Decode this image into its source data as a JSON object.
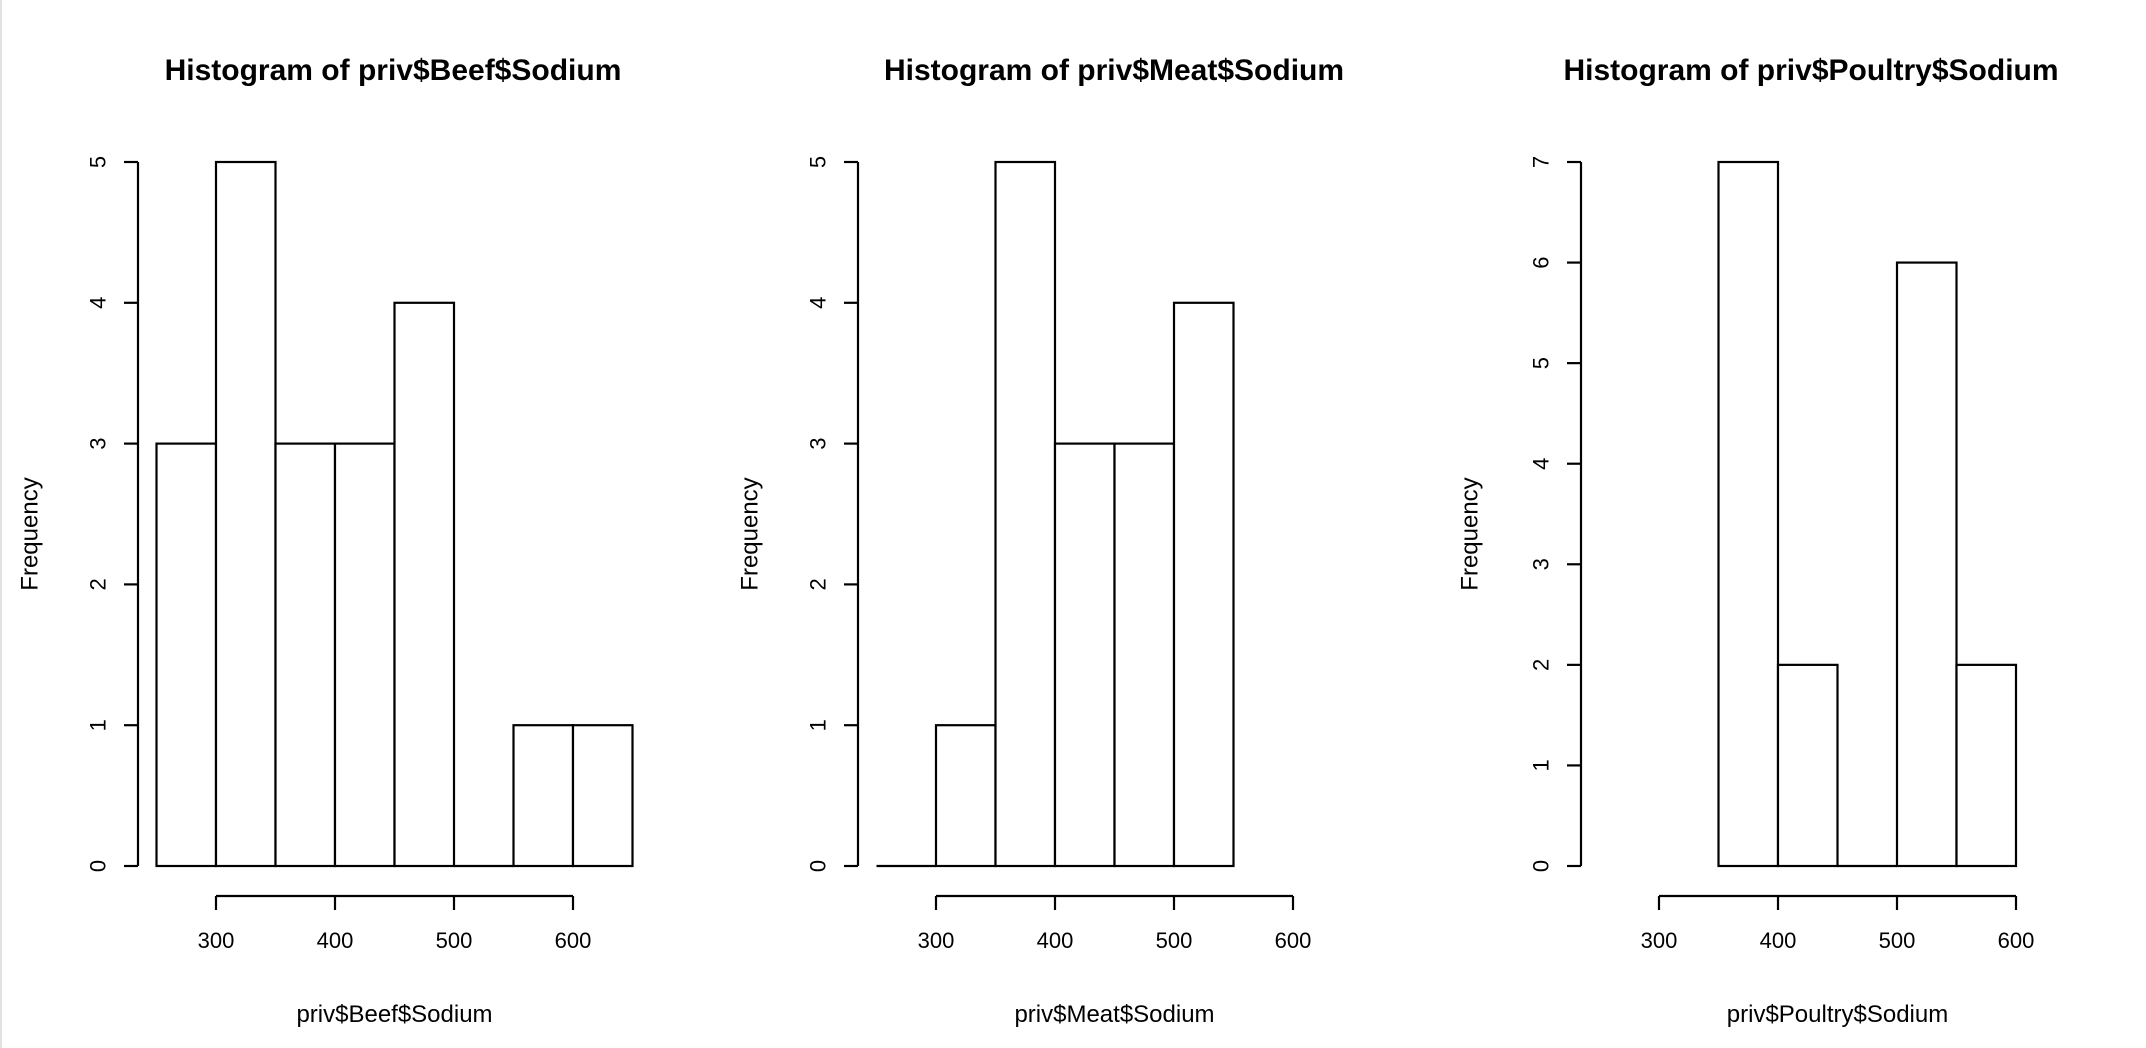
{
  "chart_data": [
    {
      "type": "bar",
      "subtype": "histogram",
      "title": "Histogram of priv$Beef$Sodium",
      "xlabel": "priv$Beef$Sodium",
      "ylabel": "Frequency",
      "bins": [
        {
          "from": 250,
          "to": 300,
          "count": 3
        },
        {
          "from": 300,
          "to": 350,
          "count": 5
        },
        {
          "from": 350,
          "to": 400,
          "count": 3
        },
        {
          "from": 400,
          "to": 450,
          "count": 3
        },
        {
          "from": 450,
          "to": 500,
          "count": 4
        },
        {
          "from": 500,
          "to": 550,
          "count": 0
        },
        {
          "from": 550,
          "to": 600,
          "count": 1
        },
        {
          "from": 600,
          "to": 650,
          "count": 1
        }
      ],
      "xticks": [
        "300",
        "400",
        "500",
        "600"
      ],
      "yticks": [
        "0",
        "1",
        "2",
        "3",
        "4",
        "5"
      ],
      "xlim": [
        250,
        650
      ],
      "ylim": [
        0,
        5
      ],
      "xaxis_range": [
        300,
        600
      ]
    },
    {
      "type": "bar",
      "subtype": "histogram",
      "title": "Histogram of priv$Meat$Sodium",
      "xlabel": "priv$Meat$Sodium",
      "ylabel": "Frequency",
      "bins": [
        {
          "from": 250,
          "to": 300,
          "count": 0
        },
        {
          "from": 300,
          "to": 350,
          "count": 1
        },
        {
          "from": 350,
          "to": 400,
          "count": 5
        },
        {
          "from": 400,
          "to": 450,
          "count": 3
        },
        {
          "from": 450,
          "to": 500,
          "count": 3
        },
        {
          "from": 500,
          "to": 550,
          "count": 4
        }
      ],
      "xticks": [
        "300",
        "400",
        "500",
        "600"
      ],
      "yticks": [
        "0",
        "1",
        "2",
        "3",
        "4",
        "5"
      ],
      "xlim": [
        250,
        650
      ],
      "ylim": [
        0,
        5
      ],
      "xaxis_range": [
        300,
        600
      ]
    },
    {
      "type": "bar",
      "subtype": "histogram",
      "title": "Histogram of priv$Poultry$Sodium",
      "xlabel": "priv$Poultry$Sodium",
      "ylabel": "Frequency",
      "bins": [
        {
          "from": 350,
          "to": 400,
          "count": 7
        },
        {
          "from": 400,
          "to": 450,
          "count": 2
        },
        {
          "from": 450,
          "to": 500,
          "count": 0
        },
        {
          "from": 500,
          "to": 550,
          "count": 6
        },
        {
          "from": 550,
          "to": 600,
          "count": 2
        }
      ],
      "xticks": [
        "300",
        "400",
        "500",
        "600"
      ],
      "yticks": [
        "0",
        "1",
        "2",
        "3",
        "4",
        "5",
        "6",
        "7"
      ],
      "xlim": [
        250,
        600
      ],
      "ylim": [
        0,
        7
      ],
      "xaxis_range": [
        300,
        600
      ]
    }
  ]
}
